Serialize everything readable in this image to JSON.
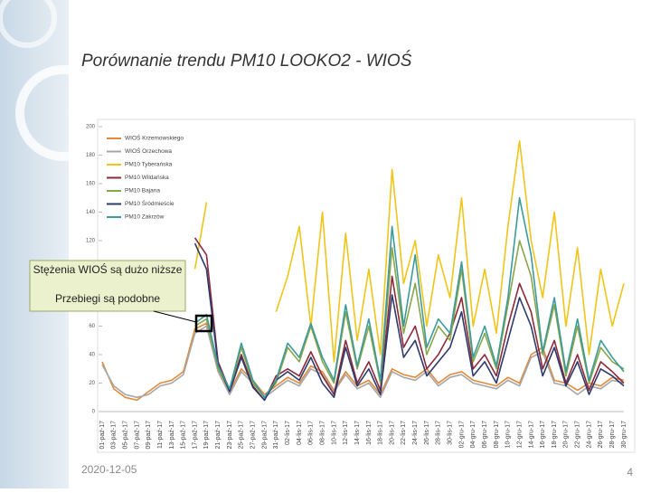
{
  "slide": {
    "title": "Porównanie trendu PM10 LOOKO2 - WIOŚ",
    "date": "2020-12-05",
    "page": "4"
  },
  "annotation": [
    "Stężenia WIOŚ są dużo niższe",
    "Przebiegi są podobne"
  ],
  "chart_data": {
    "type": "line",
    "categories": [
      "01-paź-17",
      "03-paź-17",
      "05-paź-17",
      "07-paź-17",
      "09-paź-17",
      "11-paź-17",
      "13-paź-17",
      "15-paź-17",
      "17-paź-17",
      "19-paź-17",
      "21-paź-17",
      "23-paź-17",
      "25-paź-17",
      "27-paź-17",
      "29-paź-17",
      "31-paź-17",
      "02-lis-17",
      "04-lis-17",
      "06-lis-17",
      "08-lis-17",
      "10-lis-17",
      "12-lis-17",
      "14-lis-17",
      "16-lis-17",
      "18-lis-17",
      "20-lis-17",
      "22-lis-17",
      "24-lis-17",
      "26-lis-17",
      "28-lis-17",
      "30-lis-17",
      "02-gru-17",
      "04-gru-17",
      "06-gru-17",
      "08-gru-17",
      "10-gru-17",
      "12-gru-17",
      "14-gru-17",
      "16-gru-17",
      "18-gru-17",
      "20-gru-17",
      "22-gru-17",
      "24-gru-17",
      "26-gru-17",
      "28-gru-17",
      "30-gru-17"
    ],
    "ylim": [
      0,
      200
    ],
    "yticks": [
      0,
      20,
      40,
      60,
      80,
      100,
      120,
      140,
      160,
      180,
      200
    ],
    "legend": "top-left",
    "series": [
      {
        "name": "WIOŚ Krzemowskiego",
        "color": "#e08a3c",
        "values": [
          35,
          16,
          10,
          8,
          14,
          20,
          22,
          28,
          58,
          62,
          30,
          14,
          30,
          22,
          12,
          18,
          24,
          20,
          32,
          28,
          15,
          28,
          18,
          22,
          12,
          30,
          26,
          24,
          30,
          20,
          26,
          28,
          22,
          20,
          18,
          24,
          20,
          40,
          45,
          22,
          20,
          15,
          20,
          18,
          24,
          22
        ]
      },
      {
        "name": "WIOŚ Orzechowa",
        "color": "#a6a6a6",
        "values": [
          33,
          18,
          12,
          10,
          12,
          18,
          20,
          26,
          55,
          60,
          28,
          12,
          28,
          20,
          10,
          16,
          22,
          18,
          30,
          26,
          14,
          26,
          16,
          20,
          10,
          28,
          24,
          22,
          28,
          18,
          24,
          26,
          20,
          18,
          16,
          22,
          18,
          38,
          42,
          20,
          18,
          12,
          18,
          16,
          22,
          20
        ]
      },
      {
        "name": "PM10 Tyberańska",
        "color": "#f0c419",
        "values": [
          null,
          null,
          null,
          null,
          null,
          null,
          null,
          null,
          100,
          147,
          null,
          null,
          null,
          null,
          null,
          70,
          95,
          130,
          60,
          140,
          35,
          125,
          50,
          100,
          40,
          170,
          90,
          120,
          60,
          110,
          80,
          150,
          60,
          100,
          55,
          130,
          190,
          120,
          80,
          140,
          60,
          115,
          40,
          100,
          60,
          90
        ]
      },
      {
        "name": "PM10 Wildańska",
        "color": "#8b2a3a",
        "values": [
          null,
          null,
          null,
          null,
          null,
          null,
          null,
          null,
          122,
          110,
          35,
          15,
          40,
          18,
          8,
          25,
          30,
          25,
          42,
          25,
          12,
          50,
          20,
          35,
          15,
          95,
          45,
          60,
          30,
          40,
          55,
          80,
          30,
          40,
          25,
          60,
          90,
          70,
          30,
          50,
          20,
          40,
          15,
          35,
          28,
          20
        ]
      },
      {
        "name": "PM10 Bajana",
        "color": "#8aa64a",
        "values": [
          null,
          null,
          null,
          null,
          null,
          null,
          null,
          null,
          60,
          65,
          30,
          15,
          45,
          20,
          10,
          20,
          45,
          35,
          60,
          35,
          20,
          70,
          30,
          60,
          20,
          115,
          55,
          90,
          40,
          60,
          50,
          100,
          35,
          55,
          30,
          75,
          120,
          95,
          40,
          75,
          25,
          60,
          20,
          45,
          35,
          30
        ]
      },
      {
        "name": "PM10 Śródmieście",
        "color": "#2e3a6e",
        "values": [
          null,
          null,
          null,
          null,
          null,
          null,
          null,
          null,
          118,
          100,
          33,
          14,
          38,
          17,
          8,
          22,
          28,
          22,
          38,
          20,
          10,
          45,
          18,
          30,
          12,
          82,
          38,
          50,
          25,
          35,
          45,
          70,
          25,
          35,
          20,
          50,
          80,
          60,
          25,
          45,
          18,
          35,
          12,
          30,
          25,
          18
        ]
      },
      {
        "name": "PM10 Zakrzów",
        "color": "#3c9a9a",
        "values": [
          null,
          null,
          null,
          null,
          null,
          null,
          null,
          null,
          62,
          68,
          32,
          16,
          48,
          22,
          10,
          22,
          48,
          38,
          62,
          38,
          22,
          75,
          32,
          65,
          22,
          130,
          60,
          110,
          45,
          65,
          55,
          105,
          38,
          60,
          32,
          80,
          150,
          110,
          42,
          80,
          28,
          65,
          22,
          50,
          38,
          28
        ]
      }
    ]
  }
}
